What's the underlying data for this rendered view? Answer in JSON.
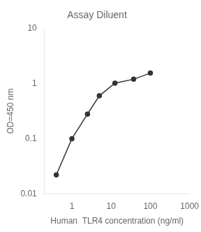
{
  "chart_data": {
    "type": "line",
    "title": "Assay Diluent",
    "xlabel": "Human  TLR4 concentration (ng/ml)",
    "ylabel": "OD=450 nm",
    "x": [
      0.4,
      1.0,
      2.5,
      5.0,
      12.5,
      37.5,
      100
    ],
    "values": [
      0.022,
      0.1,
      0.28,
      0.6,
      1.02,
      1.2,
      1.55
    ],
    "color": "#333333",
    "marker": "circle",
    "line_style": "solid",
    "log": true,
    "xlim": [
      0.2,
      1000
    ],
    "xticks": [
      1,
      10,
      100,
      1000
    ],
    "ylim": [
      0.01,
      10
    ],
    "yticks": [
      0.01,
      0.1,
      1,
      10
    ],
    "grid": false
  }
}
